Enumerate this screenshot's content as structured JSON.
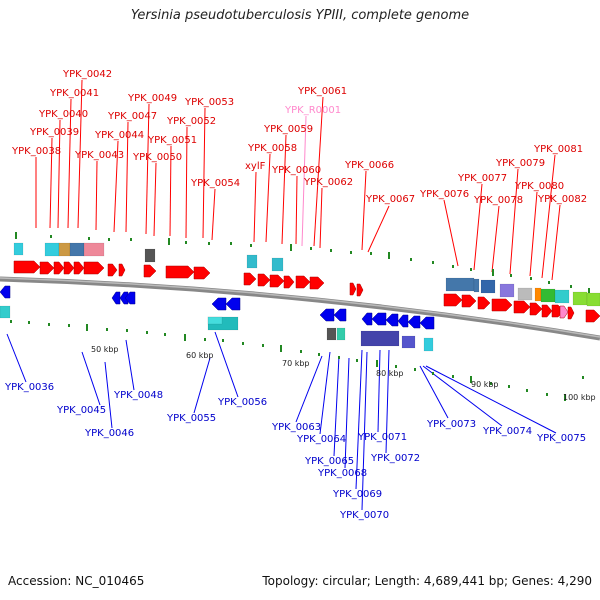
{
  "title": "Yersinia pseudotuberculosis YPIII, complete genome",
  "footer": {
    "accession": "Accession: NC_010465",
    "summary": "Topology: circular; Length: 4,689,441 bp; Genes: 4,290"
  },
  "colors": {
    "forward": "#ff0000",
    "reverse": "#0000ee",
    "rna": "#ff88cc",
    "backbone": "#888888",
    "tick": "#228822"
  },
  "kbp_labels": [
    "50 kbp",
    "60 kbp",
    "70 kbp",
    "80 kbp",
    "90 kbp",
    "100 kbp"
  ],
  "forward_genes": [
    "YPK_0038",
    "YPK_0039",
    "YPK_0040",
    "YPK_0041",
    "YPK_0042",
    "YPK_0043",
    "YPK_0044",
    "YPK_0047",
    "YPK_0049",
    "YPK_0050",
    "YPK_0051",
    "YPK_0052",
    "YPK_0053",
    "YPK_0054",
    "xylF",
    "YPK_0058",
    "YPK_0059",
    "YPK_R0001",
    "YPK_0060",
    "YPK_0061",
    "YPK_0062",
    "YPK_0066",
    "YPK_0067",
    "YPK_0076",
    "YPK_0077",
    "YPK_0078",
    "YPK_0079",
    "YPK_0080",
    "YPK_0081",
    "YPK_0082"
  ],
  "reverse_genes": [
    "YPK_0036",
    "YPK_0045",
    "YPK_0046",
    "YPK_0048",
    "YPK_0055",
    "YPK_0056",
    "YPK_0063",
    "YPK_0064",
    "YPK_0065",
    "YPK_0068",
    "YPK_0069",
    "YPK_0070",
    "YPK_0071",
    "YPK_0072",
    "YPK_0073",
    "YPK_0074",
    "YPK_0075"
  ]
}
